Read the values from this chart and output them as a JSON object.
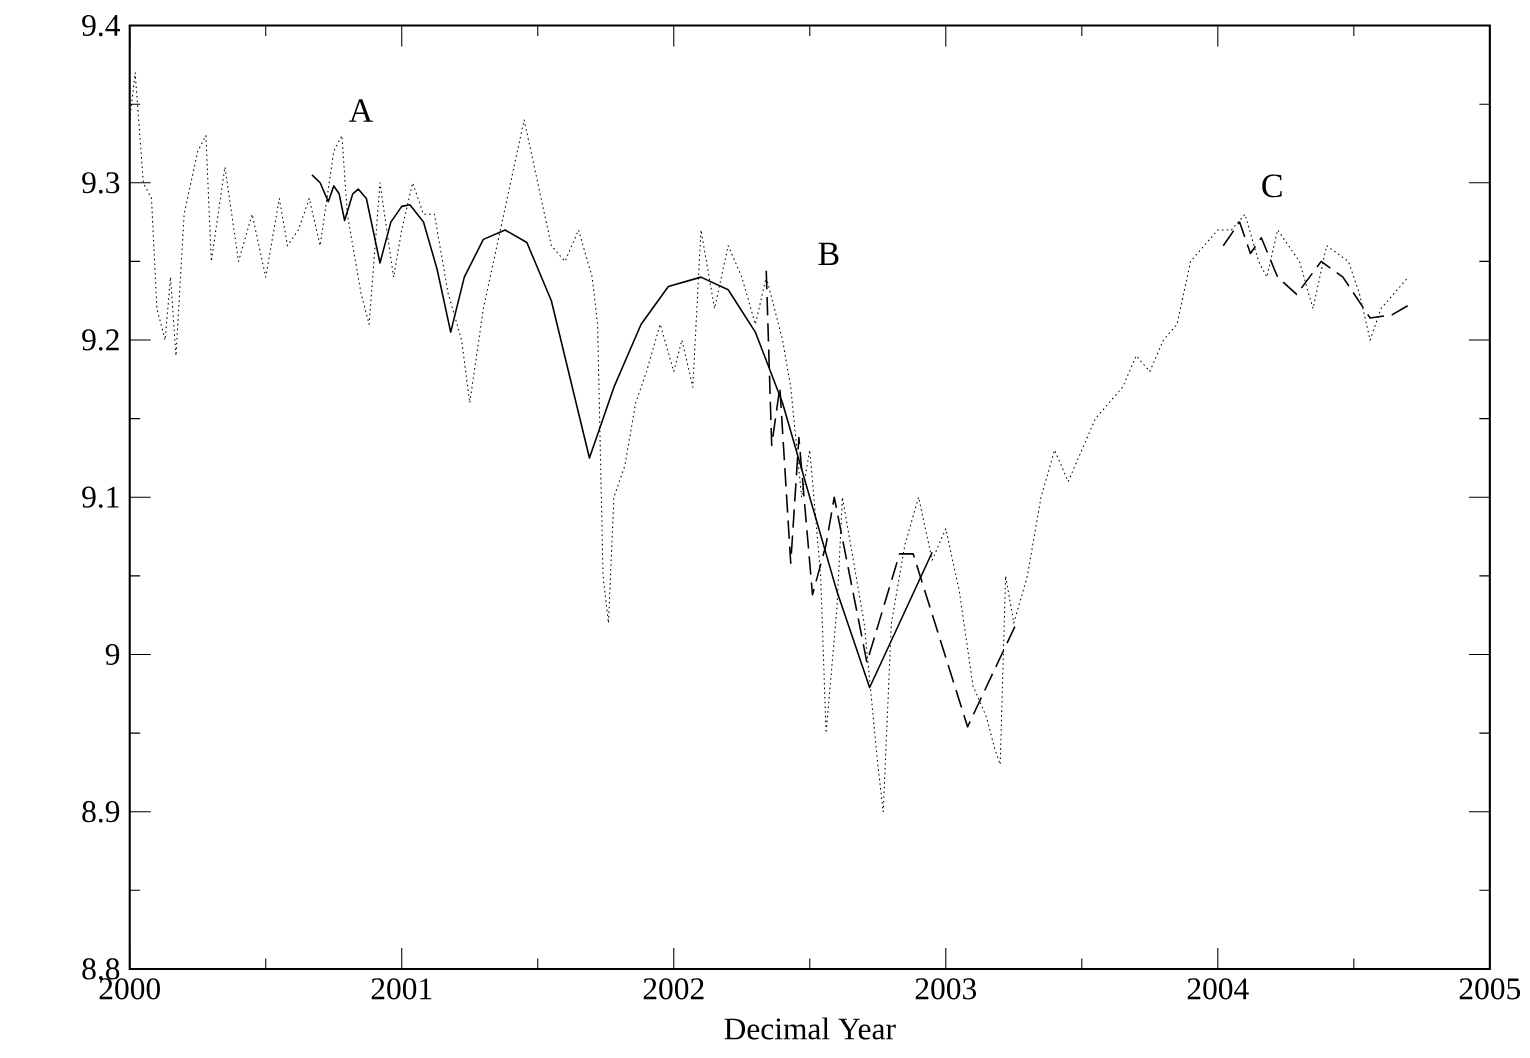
{
  "chart_data": {
    "type": "line",
    "xlabel": "Decimal Year",
    "xlim": [
      2000,
      2005
    ],
    "xticks": [
      2000,
      2001,
      2002,
      2003,
      2004,
      2005
    ],
    "ylim": [
      8.8,
      9.4
    ],
    "yticks": [
      8.8,
      8.9,
      9,
      9.1,
      9.2,
      9.3,
      9.4
    ],
    "grid": false,
    "marker": "none",
    "annotations": [
      "A",
      "B",
      "C"
    ],
    "series": [
      {
        "color": "#000000",
        "line_style": "dotted",
        "x": [
          2000.0,
          2000.02,
          2000.05,
          2000.08,
          2000.1,
          2000.13,
          2000.15,
          2000.17,
          2000.2,
          2000.25,
          2000.28,
          2000.3,
          2000.35,
          2000.4,
          2000.45,
          2000.5,
          2000.55,
          2000.58,
          2000.62,
          2000.66,
          2000.7,
          2000.75,
          2000.78,
          2000.8,
          2000.85,
          2000.88,
          2000.92,
          2000.97,
          2001.0,
          2001.04,
          2001.08,
          2001.12,
          2001.17,
          2001.22,
          2001.25,
          2001.3,
          2001.35,
          2001.4,
          2001.45,
          2001.5,
          2001.55,
          2001.6,
          2001.65,
          2001.7,
          2001.72,
          2001.74,
          2001.76,
          2001.78,
          2001.82,
          2001.86,
          2001.9,
          2001.95,
          2002.0,
          2002.03,
          2002.07,
          2002.1,
          2002.15,
          2002.2,
          2002.25,
          2002.3,
          2002.34,
          2002.4,
          2002.43,
          2002.47,
          2002.5,
          2002.54,
          2002.56,
          2002.6,
          2002.62,
          2002.66,
          2002.7,
          2002.75,
          2002.77,
          2002.8,
          2002.85,
          2002.9,
          2002.95,
          2003.0,
          2003.05,
          2003.1,
          2003.15,
          2003.18,
          2003.2,
          2003.22,
          2003.25,
          2003.3,
          2003.35,
          2003.4,
          2003.45,
          2003.5,
          2003.55,
          2003.6,
          2003.65,
          2003.7,
          2003.75,
          2003.8,
          2003.85,
          2003.9,
          2003.95,
          2004.0,
          2004.05,
          2004.1,
          2004.15,
          2004.18,
          2004.22,
          2004.3,
          2004.35,
          2004.4,
          2004.48,
          2004.52,
          2004.56,
          2004.6,
          2004.65,
          2004.7
        ],
        "values": [
          9.34,
          9.37,
          9.3,
          9.29,
          9.22,
          9.2,
          9.24,
          9.19,
          9.28,
          9.32,
          9.33,
          9.25,
          9.31,
          9.25,
          9.28,
          9.24,
          9.29,
          9.26,
          9.27,
          9.29,
          9.26,
          9.32,
          9.33,
          9.28,
          9.23,
          9.21,
          9.3,
          9.24,
          9.27,
          9.3,
          9.28,
          9.28,
          9.23,
          9.2,
          9.16,
          9.22,
          9.26,
          9.3,
          9.34,
          9.3,
          9.26,
          9.25,
          9.27,
          9.24,
          9.21,
          9.05,
          9.02,
          9.1,
          9.12,
          9.16,
          9.18,
          9.21,
          9.18,
          9.2,
          9.17,
          9.27,
          9.22,
          9.26,
          9.24,
          9.21,
          9.24,
          9.2,
          9.17,
          9.1,
          9.13,
          9.05,
          8.95,
          9.03,
          9.1,
          9.06,
          9.02,
          8.93,
          8.9,
          9.02,
          9.07,
          9.1,
          9.06,
          9.08,
          9.04,
          8.98,
          8.96,
          8.94,
          8.93,
          9.05,
          9.02,
          9.05,
          9.1,
          9.13,
          9.11,
          9.13,
          9.15,
          9.16,
          9.17,
          9.19,
          9.18,
          9.2,
          9.21,
          9.25,
          9.26,
          9.27,
          9.27,
          9.28,
          9.25,
          9.24,
          9.27,
          9.25,
          9.22,
          9.26,
          9.25,
          9.23,
          9.2,
          9.22,
          9.23,
          9.24
        ]
      },
      {
        "color": "#000000",
        "line_style": "solid",
        "x": [
          2000.67,
          2000.7,
          2000.73,
          2000.75,
          2000.77,
          2000.79,
          2000.82,
          2000.84,
          2000.87,
          2000.92,
          2000.96,
          2001.0,
          2001.03,
          2001.08,
          2001.13,
          2001.18,
          2001.23,
          2001.3,
          2001.38,
          2001.46,
          2001.55,
          2001.62,
          2001.69,
          2001.78,
          2001.88,
          2001.98,
          2002.1,
          2002.2,
          2002.3,
          2002.4,
          2002.5,
          2002.6,
          2002.72,
          2002.83,
          2002.95
        ],
        "values": [
          9.305,
          9.3,
          9.288,
          9.298,
          9.293,
          9.276,
          9.293,
          9.296,
          9.29,
          9.249,
          9.275,
          9.285,
          9.286,
          9.275,
          9.245,
          9.205,
          9.24,
          9.264,
          9.27,
          9.262,
          9.225,
          9.175,
          9.125,
          9.17,
          9.21,
          9.234,
          9.24,
          9.232,
          9.205,
          9.16,
          9.1,
          9.04,
          8.979,
          9.02,
          9.065
        ]
      },
      {
        "color": "#000000",
        "line_style": "dashed",
        "x": [
          2002.34,
          2002.36,
          2002.39,
          2002.43,
          2002.46,
          2002.51,
          2002.56,
          2002.59,
          2002.71,
          2002.83,
          2002.88,
          2003.08,
          2003.26
        ],
        "values": [
          9.244,
          9.133,
          9.17,
          9.058,
          9.138,
          9.038,
          9.07,
          9.1,
          8.995,
          9.064,
          9.064,
          8.954,
          9.02
        ]
      },
      {
        "color": "#000000",
        "line_style": "dashed",
        "x": [
          2004.02,
          2004.08,
          2004.12,
          2004.16,
          2004.22,
          2004.29,
          2004.38,
          2004.46,
          2004.56,
          2004.64,
          2004.7
        ],
        "values": [
          9.26,
          9.275,
          9.255,
          9.265,
          9.24,
          9.229,
          9.25,
          9.24,
          9.214,
          9.216,
          9.222
        ]
      }
    ]
  }
}
